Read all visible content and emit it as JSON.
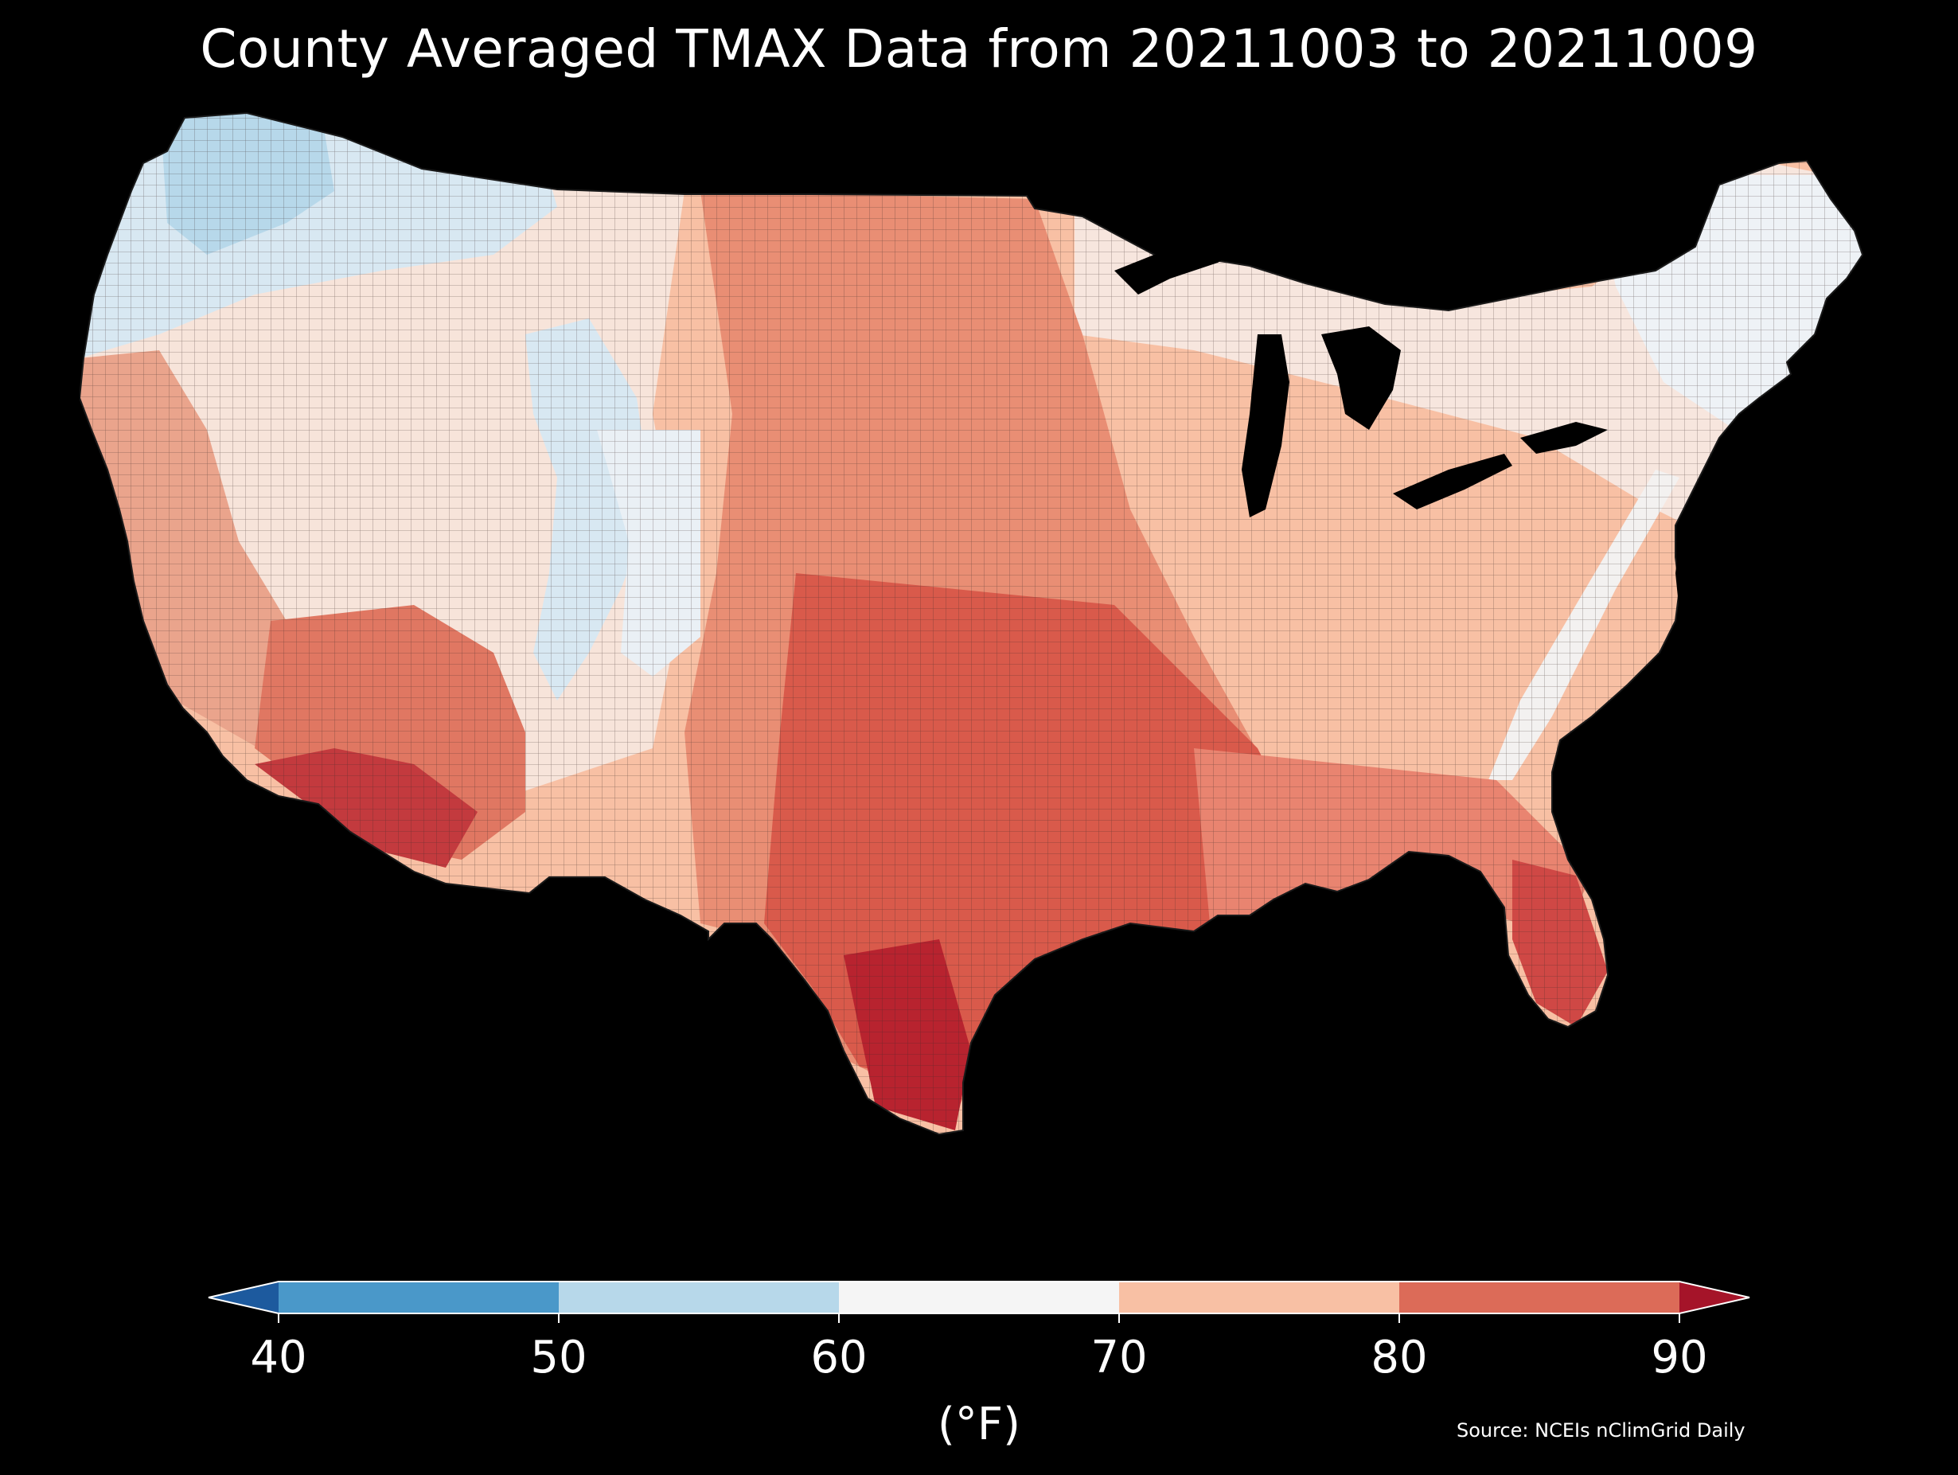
{
  "title": "County Averaged TMAX Data from 20211003 to 20211009",
  "colorbar": {
    "label": "(°F)",
    "ticks": [
      "40",
      "50",
      "60",
      "70",
      "80",
      "90"
    ],
    "bins": [
      {
        "range": [
          40,
          50
        ],
        "color": "#4a98c9"
      },
      {
        "range": [
          50,
          60
        ],
        "color": "#b7d8ea"
      },
      {
        "range": [
          60,
          70
        ],
        "color": "#f5f5f5"
      },
      {
        "range": [
          70,
          80
        ],
        "color": "#f8c0a4"
      },
      {
        "range": [
          80,
          90
        ],
        "color": "#dc6b58"
      }
    ],
    "under_color": "#1d5a9e",
    "over_color": "#a51429",
    "extend": "both"
  },
  "source": "Source: NCEIs nClimGrid Daily",
  "map": {
    "region": "Contiguous United States",
    "variable": "TMAX",
    "units": "°F",
    "background": "#000000",
    "county_border_color": "#222222"
  }
}
